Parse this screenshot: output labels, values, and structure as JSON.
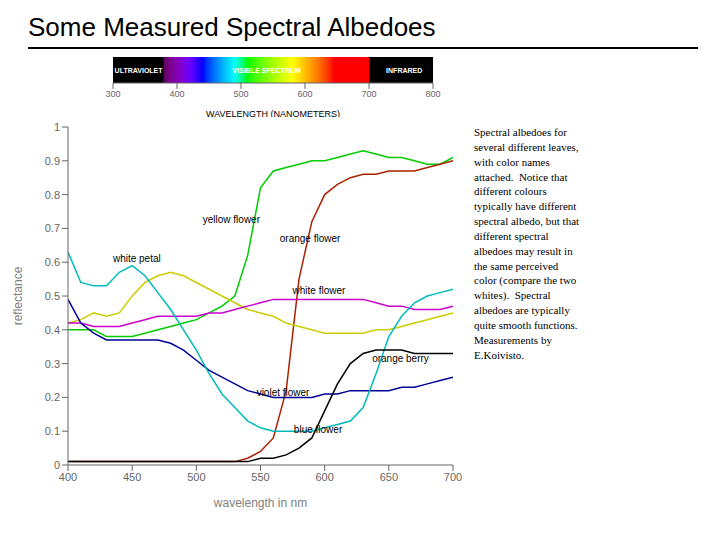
{
  "chart_data": [
    {
      "type": "line",
      "title": "Some Measured Spectral Albedoes",
      "xlabel": "wavelength in nm",
      "ylabel": "reflectance",
      "x": [
        400,
        410,
        420,
        430,
        440,
        450,
        460,
        470,
        480,
        490,
        500,
        510,
        520,
        530,
        540,
        550,
        560,
        570,
        580,
        590,
        600,
        610,
        620,
        630,
        640,
        650,
        660,
        670,
        680,
        690,
        700
      ],
      "series": [
        {
          "name": "yellow flower",
          "color": "#00cc00",
          "values": [
            0.4,
            0.4,
            0.4,
            0.38,
            0.38,
            0.38,
            0.39,
            0.4,
            0.41,
            0.42,
            0.43,
            0.45,
            0.47,
            0.5,
            0.62,
            0.82,
            0.87,
            0.88,
            0.89,
            0.9,
            0.9,
            0.91,
            0.92,
            0.93,
            0.92,
            0.91,
            0.91,
            0.9,
            0.89,
            0.89,
            0.91
          ]
        },
        {
          "name": "orange flower",
          "color": "#aa2200",
          "values": [
            0.01,
            0.01,
            0.01,
            0.01,
            0.01,
            0.01,
            0.01,
            0.01,
            0.01,
            0.01,
            0.01,
            0.01,
            0.01,
            0.01,
            0.02,
            0.04,
            0.08,
            0.22,
            0.55,
            0.72,
            0.8,
            0.83,
            0.85,
            0.86,
            0.86,
            0.87,
            0.87,
            0.87,
            0.88,
            0.89,
            0.9
          ]
        },
        {
          "name": "white petal",
          "color": "#cccc00",
          "values": [
            0.42,
            0.43,
            0.45,
            0.44,
            0.45,
            0.5,
            0.54,
            0.56,
            0.57,
            0.56,
            0.54,
            0.52,
            0.5,
            0.48,
            0.46,
            0.45,
            0.44,
            0.42,
            0.41,
            0.4,
            0.39,
            0.39,
            0.39,
            0.39,
            0.4,
            0.4,
            0.41,
            0.42,
            0.43,
            0.44,
            0.45
          ]
        },
        {
          "name": "white flower",
          "color": "#cc00cc",
          "values": [
            0.42,
            0.42,
            0.41,
            0.41,
            0.41,
            0.42,
            0.43,
            0.44,
            0.44,
            0.44,
            0.44,
            0.45,
            0.45,
            0.46,
            0.47,
            0.48,
            0.49,
            0.49,
            0.49,
            0.49,
            0.49,
            0.49,
            0.49,
            0.49,
            0.48,
            0.47,
            0.47,
            0.46,
            0.46,
            0.46,
            0.47
          ]
        },
        {
          "name": "violet flower",
          "color": "#000099",
          "values": [
            0.49,
            0.42,
            0.39,
            0.37,
            0.37,
            0.37,
            0.37,
            0.37,
            0.36,
            0.34,
            0.31,
            0.28,
            0.26,
            0.24,
            0.22,
            0.21,
            0.2,
            0.2,
            0.2,
            0.2,
            0.21,
            0.21,
            0.22,
            0.22,
            0.22,
            0.22,
            0.23,
            0.23,
            0.24,
            0.25,
            0.26
          ]
        },
        {
          "name": "blue flower",
          "color": "#00bbbb",
          "values": [
            0.63,
            0.54,
            0.53,
            0.53,
            0.57,
            0.59,
            0.56,
            0.51,
            0.46,
            0.4,
            0.34,
            0.27,
            0.21,
            0.17,
            0.13,
            0.11,
            0.1,
            0.1,
            0.1,
            0.1,
            0.11,
            0.12,
            0.13,
            0.17,
            0.27,
            0.38,
            0.44,
            0.48,
            0.5,
            0.51,
            0.52
          ]
        },
        {
          "name": "orange berry",
          "color": "#000000",
          "values": [
            0.01,
            0.01,
            0.01,
            0.01,
            0.01,
            0.01,
            0.01,
            0.01,
            0.01,
            0.01,
            0.01,
            0.01,
            0.01,
            0.01,
            0.01,
            0.02,
            0.02,
            0.03,
            0.05,
            0.08,
            0.16,
            0.24,
            0.3,
            0.33,
            0.34,
            0.34,
            0.34,
            0.33,
            0.33,
            0.33,
            0.33
          ]
        }
      ],
      "xlim": [
        400,
        700
      ],
      "xticks": [
        400,
        450,
        500,
        550,
        600,
        650,
        700
      ],
      "ylim": [
        0,
        1.0
      ],
      "yticks": [
        0,
        0.1,
        0.2,
        0.3,
        0.4,
        0.5,
        0.6,
        0.7,
        0.8,
        0.9,
        1
      ],
      "grid": false,
      "annotations": [
        {
          "text": "yellow flower",
          "x": 505,
          "y": 0.715
        },
        {
          "text": "orange flower",
          "x": 565,
          "y": 0.66
        },
        {
          "text": "white petal",
          "x": 435,
          "y": 0.6
        },
        {
          "text": "white flower",
          "x": 575,
          "y": 0.505
        },
        {
          "text": "violet flower",
          "x": 547,
          "y": 0.205
        },
        {
          "text": "blue flower",
          "x": 576,
          "y": 0.095
        },
        {
          "text": "orange berry",
          "x": 637,
          "y": 0.305
        },
        {
          "text": "Spectral albedoes for\nseveral different leaves,\nwith color names\nattached.  Notice that\ndifferent colours\ntypically have different\nspectral albedo, but that\ndifferent spectral\nalbedoes may result in\nthe same perceived\ncolor (compare the two\nwhites).  Spectral\nalbedoes are typically\nquite smooth functions.\nMeasurements by\nE.Koivisto."
        }
      ]
    },
    {
      "type": "spectrum",
      "xlabel": "WAVELENGTH (NANOMETERS)",
      "xlim": [
        300,
        800
      ],
      "xticks": [
        300,
        400,
        500,
        600,
        700,
        800
      ],
      "ylim": [
        0,
        1
      ],
      "tick_labels": "x",
      "annotations": [
        {
          "text": "ULTRAVIOLET",
          "x": 340,
          "y": 0.5
        },
        {
          "text": "VISIBLE SPECTRUM",
          "x": 540,
          "y": 0.5
        },
        {
          "text": "INFRARED",
          "x": 755,
          "y": 0.5
        }
      ]
    }
  ]
}
